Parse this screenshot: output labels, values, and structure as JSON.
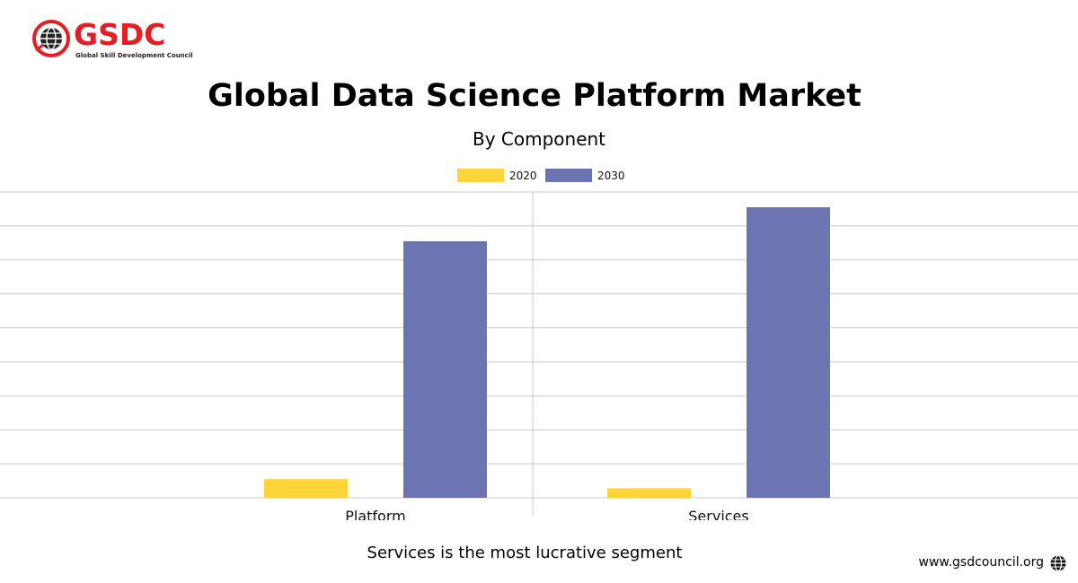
{
  "logo": {
    "name": "GSDC",
    "tagline": "Global Skill Development Council",
    "icon": "globe-icon",
    "color": "#e31e24"
  },
  "footer": {
    "caption": "Services is the most lucrative segment",
    "website": "www.gsdcouncil.org",
    "website_icon": "globe-icon"
  },
  "chart_data": {
    "type": "bar",
    "title": "Global Data Science Platform Market",
    "subtitle": "By Component",
    "categories": [
      "Platform",
      "Services"
    ],
    "series": [
      {
        "name": "2020",
        "color": "#fdd43a",
        "values": [
          5.5,
          2.8
        ]
      },
      {
        "name": "2030",
        "color": "#6d74b2",
        "values": [
          75.5,
          85.5
        ]
      }
    ],
    "ylim": [
      0,
      90
    ],
    "y_tick_step": 10,
    "y_tick_labels_visible": false,
    "grid": true,
    "legend": "top-center"
  }
}
